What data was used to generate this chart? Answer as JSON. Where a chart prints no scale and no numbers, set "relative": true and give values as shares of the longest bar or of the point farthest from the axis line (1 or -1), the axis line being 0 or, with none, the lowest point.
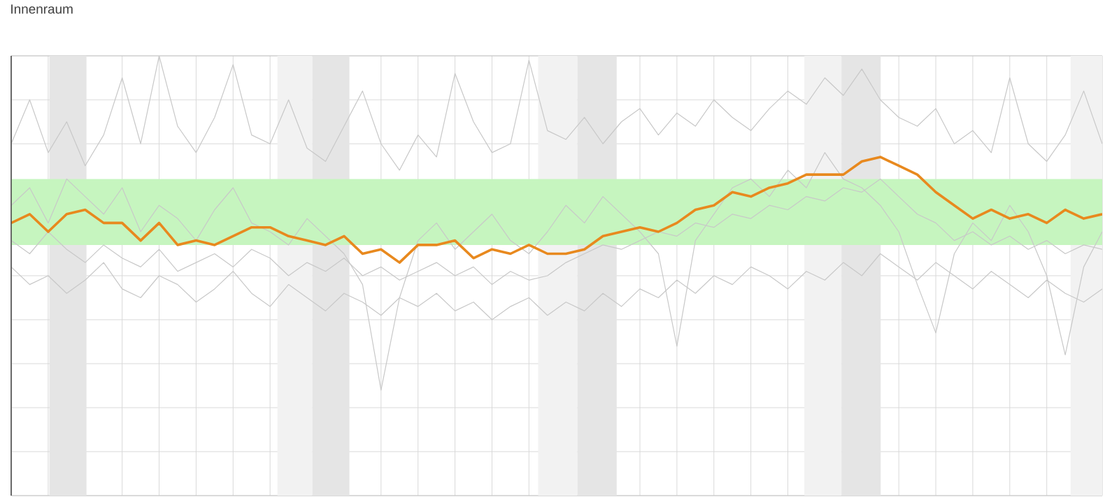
{
  "chart_data": {
    "type": "line",
    "title": "Innenraum",
    "relative": true,
    "grid": true,
    "tick_labels": false,
    "categories": [
      null,
      null,
      null,
      null,
      null,
      null,
      null,
      null,
      null,
      null,
      null,
      null,
      null,
      null,
      null,
      null,
      null,
      null,
      null,
      null,
      null,
      null,
      null,
      null,
      null,
      null,
      null,
      null,
      null,
      null,
      null,
      null,
      null,
      null,
      null,
      null,
      null,
      null,
      null,
      null,
      null,
      null,
      null,
      null,
      null,
      null,
      null,
      null,
      null,
      null,
      null,
      null,
      null,
      null,
      null,
      null,
      null,
      null,
      null,
      null
    ],
    "bands": [
      {
        "axis": "y",
        "from": 0.57,
        "to": 0.72,
        "color": "#c6f5bf"
      }
    ],
    "series": [
      {
        "color": "#c8c8c8",
        "values": [
          0.8,
          0.9,
          0.78,
          0.85,
          0.75,
          0.82,
          0.95,
          0.8,
          1.0,
          0.84,
          0.78,
          0.86,
          0.98,
          0.82,
          0.8,
          0.9,
          0.79,
          0.76,
          0.84,
          0.92,
          0.8,
          0.74,
          0.82,
          0.77,
          0.96,
          0.85,
          0.78,
          0.8,
          0.99,
          0.83,
          0.81,
          0.86,
          0.8,
          0.85,
          0.88,
          0.82,
          0.87,
          0.84,
          0.9,
          0.86,
          0.83,
          0.88,
          0.92,
          0.89,
          0.95,
          0.91,
          0.97,
          0.9,
          0.86,
          0.84,
          0.88,
          0.8,
          0.83,
          0.78,
          0.95,
          0.8,
          0.76,
          0.82,
          0.92,
          0.8
        ]
      },
      {
        "color": "#c8c8c8",
        "values": [
          0.52,
          0.48,
          0.5,
          0.46,
          0.49,
          0.53,
          0.47,
          0.45,
          0.5,
          0.48,
          0.44,
          0.47,
          0.51,
          0.46,
          0.43,
          0.48,
          0.45,
          0.42,
          0.46,
          0.44,
          0.41,
          0.45,
          0.43,
          0.46,
          0.42,
          0.44,
          0.4,
          0.43,
          0.45,
          0.41,
          0.44,
          0.42,
          0.46,
          0.43,
          0.47,
          0.45,
          0.49,
          0.46,
          0.5,
          0.48,
          0.52,
          0.5,
          0.47,
          0.51,
          0.49,
          0.53,
          0.5,
          0.55,
          0.52,
          0.49,
          0.53,
          0.5,
          0.47,
          0.51,
          0.48,
          0.45,
          0.49,
          0.46,
          0.44,
          0.47
        ]
      },
      {
        "color": "#c8c8c8",
        "values": [
          0.66,
          0.7,
          0.62,
          0.72,
          0.68,
          0.64,
          0.7,
          0.6,
          0.66,
          0.63,
          0.58,
          0.65,
          0.7,
          0.62,
          0.6,
          0.57,
          0.63,
          0.59,
          0.55,
          0.48,
          0.24,
          0.45,
          0.58,
          0.62,
          0.56,
          0.6,
          0.64,
          0.58,
          0.55,
          0.6,
          0.66,
          0.62,
          0.68,
          0.64,
          0.6,
          0.55,
          0.34,
          0.58,
          0.64,
          0.7,
          0.72,
          0.68,
          0.74,
          0.7,
          0.78,
          0.72,
          0.7,
          0.66,
          0.6,
          0.48,
          0.37,
          0.55,
          0.62,
          0.58,
          0.66,
          0.6,
          0.5,
          0.32,
          0.52,
          0.6
        ]
      },
      {
        "color": "#c8c8c8",
        "values": [
          0.58,
          0.55,
          0.6,
          0.56,
          0.53,
          0.57,
          0.54,
          0.52,
          0.56,
          0.51,
          0.53,
          0.55,
          0.52,
          0.56,
          0.54,
          0.5,
          0.53,
          0.51,
          0.54,
          0.5,
          0.52,
          0.49,
          0.51,
          0.53,
          0.5,
          0.52,
          0.48,
          0.51,
          0.49,
          0.5,
          0.53,
          0.55,
          0.57,
          0.56,
          0.58,
          0.6,
          0.59,
          0.62,
          0.61,
          0.64,
          0.63,
          0.66,
          0.65,
          0.68,
          0.67,
          0.7,
          0.69,
          0.72,
          0.68,
          0.64,
          0.62,
          0.58,
          0.6,
          0.57,
          0.59,
          0.56,
          0.58,
          0.55,
          0.57,
          0.56
        ]
      },
      {
        "color": "#e8891e",
        "values": [
          0.62,
          0.64,
          0.6,
          0.64,
          0.65,
          0.62,
          0.62,
          0.58,
          0.62,
          0.57,
          0.58,
          0.57,
          0.59,
          0.61,
          0.61,
          0.59,
          0.58,
          0.57,
          0.59,
          0.55,
          0.56,
          0.53,
          0.57,
          0.57,
          0.58,
          0.54,
          0.56,
          0.55,
          0.57,
          0.55,
          0.55,
          0.56,
          0.59,
          0.6,
          0.61,
          0.6,
          0.62,
          0.65,
          0.66,
          0.69,
          0.68,
          0.7,
          0.71,
          0.73,
          0.73,
          0.73,
          0.76,
          0.77,
          0.75,
          0.73,
          0.69,
          0.66,
          0.63,
          0.65,
          0.63,
          0.64,
          0.62,
          0.65,
          0.63,
          0.64
        ]
      }
    ]
  }
}
